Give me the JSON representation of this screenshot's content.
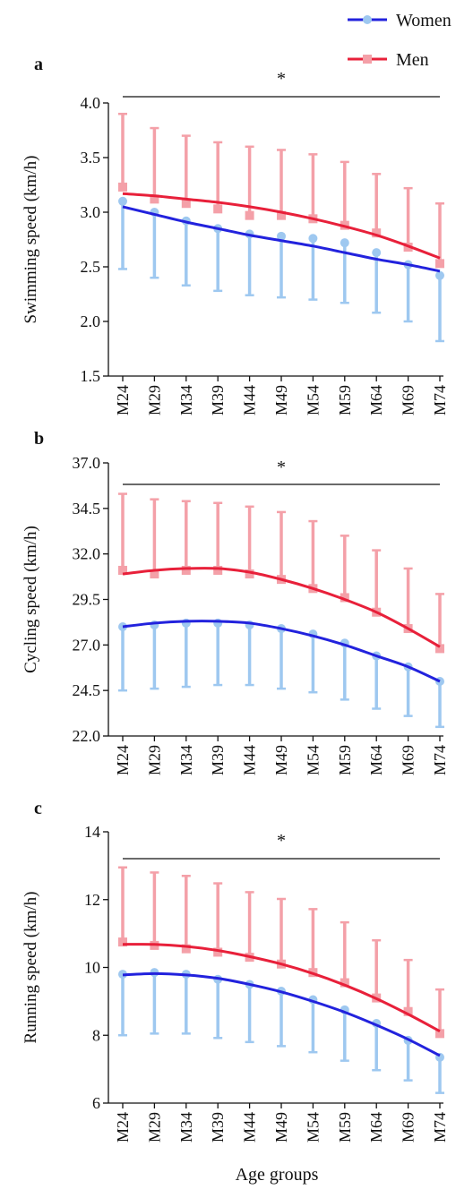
{
  "legend": [
    {
      "name": "Women",
      "color": "#2222dd",
      "marker_color": "#9ec8f0",
      "marker": "circle"
    },
    {
      "name": "Men",
      "color": "#e8203a",
      "marker_color": "#f4a0a8",
      "marker": "square"
    }
  ],
  "xlabel": "Age groups",
  "chart_data": [
    {
      "type": "line",
      "panel": "a",
      "categories": [
        "M24",
        "M29",
        "M34",
        "M39",
        "M44",
        "M49",
        "M54",
        "M59",
        "M64",
        "M69",
        "M74"
      ],
      "ylabel": "Swimming speed (km/h)",
      "ylim": [
        1.5,
        4.0
      ],
      "yticks": [
        "1.5",
        "2.0",
        "2.5",
        "3.0",
        "3.5",
        "4.0"
      ],
      "significance": "*",
      "series": [
        {
          "name": "Women",
          "means": [
            3.1,
            3.0,
            2.92,
            2.85,
            2.8,
            2.78,
            2.76,
            2.72,
            2.63,
            2.52,
            2.42
          ],
          "err_lower": [
            2.48,
            2.4,
            2.33,
            2.28,
            2.24,
            2.22,
            2.2,
            2.17,
            2.08,
            2.0,
            1.82
          ],
          "trend": [
            3.05,
            2.98,
            2.91,
            2.85,
            2.79,
            2.74,
            2.69,
            2.63,
            2.57,
            2.52,
            2.46
          ]
        },
        {
          "name": "Men",
          "means": [
            3.23,
            3.12,
            3.08,
            3.03,
            2.97,
            2.97,
            2.94,
            2.88,
            2.81,
            2.68,
            2.53
          ],
          "err_upper": [
            3.9,
            3.77,
            3.7,
            3.64,
            3.6,
            3.57,
            3.53,
            3.46,
            3.35,
            3.22,
            3.08
          ],
          "trend": [
            3.17,
            3.15,
            3.12,
            3.09,
            3.05,
            3.0,
            2.94,
            2.87,
            2.79,
            2.69,
            2.58
          ]
        }
      ]
    },
    {
      "type": "line",
      "panel": "b",
      "categories": [
        "M24",
        "M29",
        "M34",
        "M39",
        "M44",
        "M49",
        "M54",
        "M59",
        "M64",
        "M69",
        "M74"
      ],
      "ylabel": "Cycling speed (km/h)",
      "ylim": [
        22.0,
        37.0
      ],
      "yticks": [
        "22.0",
        "24.5",
        "27.0",
        "29.5",
        "32.0",
        "34.5",
        "37.0"
      ],
      "significance": "*",
      "series": [
        {
          "name": "Women",
          "means": [
            28.0,
            28.1,
            28.2,
            28.2,
            28.1,
            27.9,
            27.6,
            27.1,
            26.4,
            25.8,
            25.0
          ],
          "err_lower": [
            24.5,
            24.6,
            24.7,
            24.8,
            24.8,
            24.6,
            24.4,
            24.0,
            23.5,
            23.1,
            22.5
          ],
          "trend": [
            28.0,
            28.2,
            28.3,
            28.3,
            28.2,
            27.9,
            27.5,
            27.0,
            26.4,
            25.8,
            25.0
          ]
        },
        {
          "name": "Men",
          "means": [
            31.1,
            30.9,
            31.1,
            31.1,
            30.9,
            30.6,
            30.1,
            29.6,
            28.8,
            27.9,
            26.8
          ],
          "err_upper": [
            35.3,
            35.0,
            34.9,
            34.8,
            34.6,
            34.3,
            33.8,
            33.0,
            32.2,
            31.2,
            29.8
          ],
          "trend": [
            30.9,
            31.1,
            31.2,
            31.2,
            31.0,
            30.6,
            30.1,
            29.5,
            28.8,
            27.9,
            26.9
          ]
        }
      ]
    },
    {
      "type": "line",
      "panel": "c",
      "categories": [
        "M24",
        "M29",
        "M34",
        "M39",
        "M44",
        "M49",
        "M54",
        "M59",
        "M64",
        "M69",
        "M74"
      ],
      "ylabel": "Running speed (km/h)",
      "ylim": [
        6,
        14
      ],
      "yticks": [
        "6",
        "8",
        "10",
        "12",
        "14"
      ],
      "significance": "*",
      "series": [
        {
          "name": "Women",
          "means": [
            9.8,
            9.85,
            9.8,
            9.65,
            9.5,
            9.3,
            9.05,
            8.75,
            8.35,
            7.85,
            7.35
          ],
          "err_lower": [
            8.0,
            8.05,
            8.05,
            7.92,
            7.8,
            7.68,
            7.5,
            7.25,
            6.97,
            6.67,
            6.3
          ],
          "trend": [
            9.78,
            9.82,
            9.78,
            9.68,
            9.5,
            9.28,
            9.0,
            8.68,
            8.3,
            7.88,
            7.4
          ]
        },
        {
          "name": "Men",
          "means": [
            10.75,
            10.65,
            10.55,
            10.45,
            10.3,
            10.1,
            9.85,
            9.55,
            9.1,
            8.7,
            8.05
          ],
          "err_upper": [
            12.95,
            12.8,
            12.7,
            12.48,
            12.22,
            12.02,
            11.72,
            11.33,
            10.8,
            10.22,
            9.35
          ],
          "trend": [
            10.68,
            10.68,
            10.62,
            10.5,
            10.32,
            10.1,
            9.82,
            9.48,
            9.08,
            8.62,
            8.12
          ]
        }
      ]
    }
  ]
}
